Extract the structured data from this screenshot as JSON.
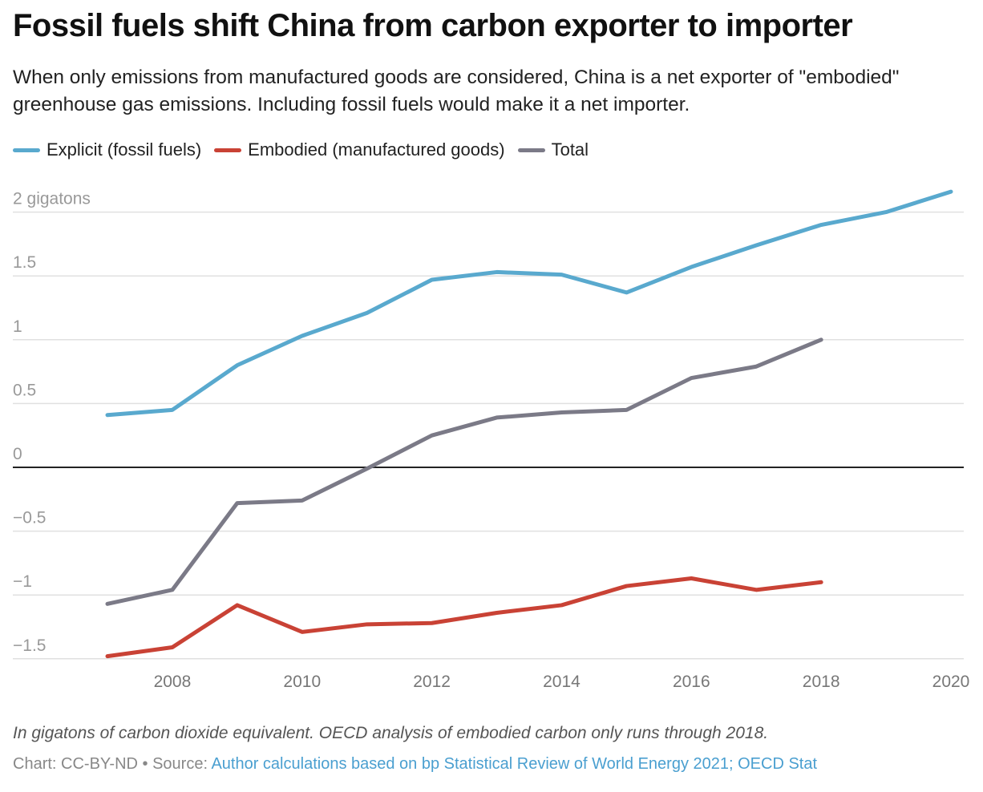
{
  "title": "Fossil fuels shift China from carbon exporter to importer",
  "subtitle": "When only emissions from manufactured goods are considered, China is a net exporter of \"embodied\" greenhouse gas emissions. Including fossil fuels would make it a net importer.",
  "note": "In gigatons of carbon dioxide equivalent. OECD analysis of embodied carbon only runs through 2018.",
  "credit": "Chart: CC-BY-ND • Source: ",
  "source_link": "Author calculations based on bp Statistical Review of World Energy 2021; OECD Stat",
  "chart_data": {
    "type": "line",
    "x": [
      2007,
      2008,
      2009,
      2010,
      2011,
      2012,
      2013,
      2014,
      2015,
      2016,
      2017,
      2018,
      2019,
      2020
    ],
    "ylim": [
      -1.5,
      2
    ],
    "yticks": [
      2,
      1.5,
      1,
      0.5,
      0,
      -0.5,
      -1,
      -1.5
    ],
    "ytick_labels": [
      "2 gigatons",
      "1.5",
      "1",
      "0.5",
      "0",
      "−0.5",
      "−1",
      "−1.5"
    ],
    "xticks": [
      2008,
      2010,
      2012,
      2014,
      2016,
      2018,
      2020
    ],
    "grid": true,
    "legend_position": "top-left",
    "series": [
      {
        "name": "Explicit (fossil fuels)",
        "color": "#59a9ce",
        "values": [
          0.41,
          0.45,
          0.8,
          1.03,
          1.21,
          1.47,
          1.53,
          1.51,
          1.37,
          1.57,
          1.74,
          1.9,
          2.0,
          2.16
        ]
      },
      {
        "name": "Embodied (manufactured goods)",
        "color": "#c94235",
        "values": [
          -1.48,
          -1.41,
          -1.08,
          -1.29,
          -1.23,
          -1.22,
          -1.14,
          -1.08,
          -0.93,
          -0.87,
          -0.96,
          -0.9,
          null,
          null
        ]
      },
      {
        "name": "Total",
        "color": "#7b7a87",
        "values": [
          -1.07,
          -0.96,
          -0.28,
          -0.26,
          -0.01,
          0.25,
          0.39,
          0.43,
          0.45,
          0.7,
          0.79,
          1.0,
          null,
          null
        ]
      }
    ]
  }
}
